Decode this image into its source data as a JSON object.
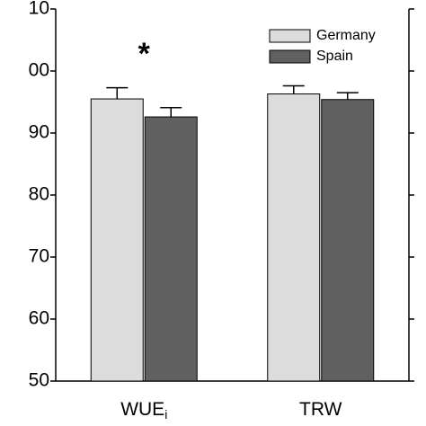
{
  "chart_data": {
    "type": "bar",
    "categories": [
      "WUE",
      "TRW"
    ],
    "category_subscripts": [
      "i",
      null
    ],
    "series": [
      {
        "name": "Germany",
        "color": "#dcdcdc",
        "values": [
          95.5,
          96.3
        ],
        "errors": [
          1.8,
          1.3
        ]
      },
      {
        "name": "Spain",
        "color": "#606060",
        "values": [
          92.6,
          95.4
        ],
        "errors": [
          1.5,
          1.1
        ]
      }
    ],
    "annotation": "*",
    "ylim": [
      50,
      110
    ],
    "yticks": [
      50,
      60,
      70,
      80,
      90,
      {
        "value": 100,
        "label": "00"
      },
      {
        "value": 110,
        "label": "10"
      }
    ],
    "legend": "upper right"
  }
}
